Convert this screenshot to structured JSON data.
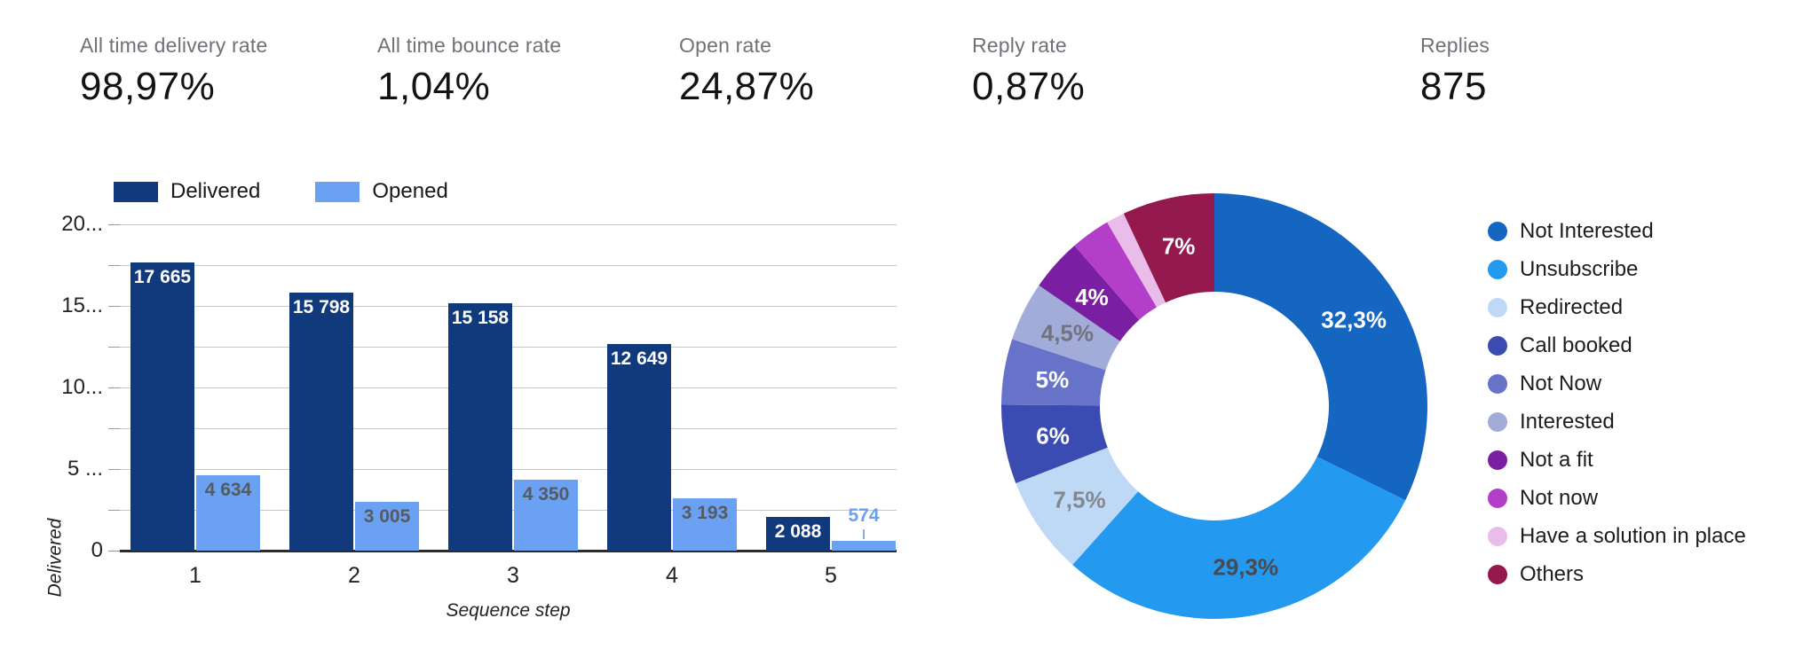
{
  "stats": [
    {
      "label": "All time delivery rate",
      "value": "98,97%"
    },
    {
      "label": "All time bounce rate",
      "value": "1,04%"
    },
    {
      "label": "Open rate",
      "value": "24,87%"
    },
    {
      "label": "Reply rate",
      "value": "0,87%"
    },
    {
      "label": "Replies",
      "value": "875"
    }
  ],
  "chart_data": [
    {
      "type": "bar",
      "title": "",
      "categories": [
        "1",
        "2",
        "3",
        "4",
        "5"
      ],
      "series": [
        {
          "name": "Delivered",
          "color": "#113a7d",
          "values": [
            17665,
            15798,
            15158,
            12649,
            2088
          ],
          "labels": [
            "17 665",
            "15 798",
            "15 158",
            "12 649",
            "2 088"
          ],
          "label_color": "#ffffff"
        },
        {
          "name": "Opened",
          "color": "#6aa1f2",
          "values": [
            4634,
            3005,
            4350,
            3193,
            574
          ],
          "labels": [
            "4 634",
            "3 005",
            "4 350",
            "3 193",
            "574"
          ],
          "label_color": "#565a61"
        }
      ],
      "xlabel": "Sequence step",
      "ylabel": "Delivered",
      "ylim": [
        0,
        20000
      ],
      "gridline_step": 2500,
      "grid": true,
      "legend_position": "top",
      "ytick_labels": [
        {
          "value": 20000,
          "label": "20..."
        },
        {
          "value": 15000,
          "label": "15..."
        },
        {
          "value": 10000,
          "label": "10..."
        },
        {
          "value": 5000,
          "label": "5 ..."
        },
        {
          "value": 0,
          "label": "0"
        }
      ]
    },
    {
      "type": "pie",
      "donut": true,
      "legend_position": "right",
      "slices": [
        {
          "name": "Not Interested",
          "value": 32.3,
          "label": "32,3%",
          "color": "#1566c1",
          "label_color": "#ffffff"
        },
        {
          "name": "Unsubscribe",
          "value": 29.3,
          "label": "29,3%",
          "color": "#2499f0",
          "label_color": "#474a50"
        },
        {
          "name": "Redirected",
          "value": 7.5,
          "label": "7,5%",
          "color": "#bdd9f6",
          "label_color": "#83888f"
        },
        {
          "name": "Call booked",
          "value": 6,
          "label": "6%",
          "color": "#3a4cb1",
          "label_color": "#ffffff"
        },
        {
          "name": "Not Now",
          "value": 5,
          "label": "5%",
          "color": "#6673c8",
          "label_color": "#ffffff"
        },
        {
          "name": "Interested",
          "value": 4.5,
          "label": "4,5%",
          "color": "#a3abd9",
          "label_color": "#6f7480"
        },
        {
          "name": "Not a fit",
          "value": 4,
          "label": "4%",
          "color": "#7b1fa2",
          "label_color": "#ffffff"
        },
        {
          "name": "Not now",
          "value": 3,
          "label": "",
          "color": "#b33fc9",
          "label_color": "#ffffff"
        },
        {
          "name": "Have a solution in place",
          "value": 1.4,
          "label": "",
          "color": "#e9bce9",
          "label_color": "#ffffff"
        },
        {
          "name": "Others",
          "value": 7,
          "label": "7%",
          "color": "#93194f",
          "label_color": "#ffffff"
        }
      ]
    }
  ]
}
